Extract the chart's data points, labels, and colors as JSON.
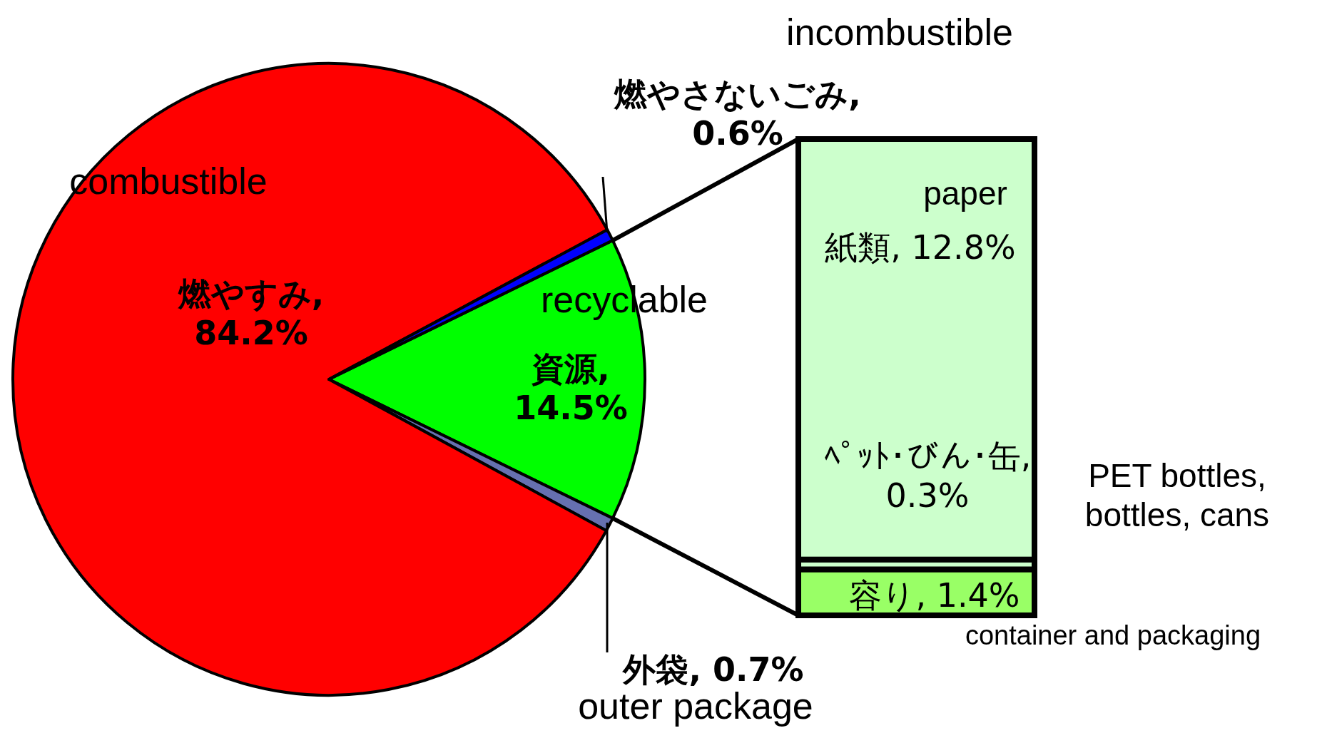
{
  "chart_data": [
    {
      "type": "pie",
      "categories": [
        "recyclable",
        "outer package",
        "combustible",
        "incombustible"
      ],
      "values": [
        14.5,
        0.7,
        84.2,
        0.6
      ],
      "colors": [
        "#00ff00",
        "#6670b0",
        "#ff0000",
        "#0000ff"
      ],
      "value_labels": [
        "資源, 14.5%",
        "外袋, 0.7%",
        "燃やすみ, 84.2%",
        "燃やさないごみ, 0.6%"
      ]
    },
    {
      "type": "bar",
      "stacked": true,
      "categories": [
        null
      ],
      "series": [
        {
          "name": "container and packaging",
          "color": "#99ff66",
          "values": [
            1.4
          ],
          "value_labels": [
            "容り, 1.4%"
          ]
        },
        {
          "name": "PET bottles, bottles, cans",
          "color": "#ccffcc",
          "values": [
            0.3
          ],
          "value_labels": [
            "ﾍﾟｯﾄ･びん･缶, 0.3%"
          ]
        },
        {
          "name": "paper",
          "color": "#ccffcc",
          "values": [
            12.8
          ],
          "value_labels": [
            "紙類, 12.8%"
          ]
        }
      ]
    }
  ]
}
